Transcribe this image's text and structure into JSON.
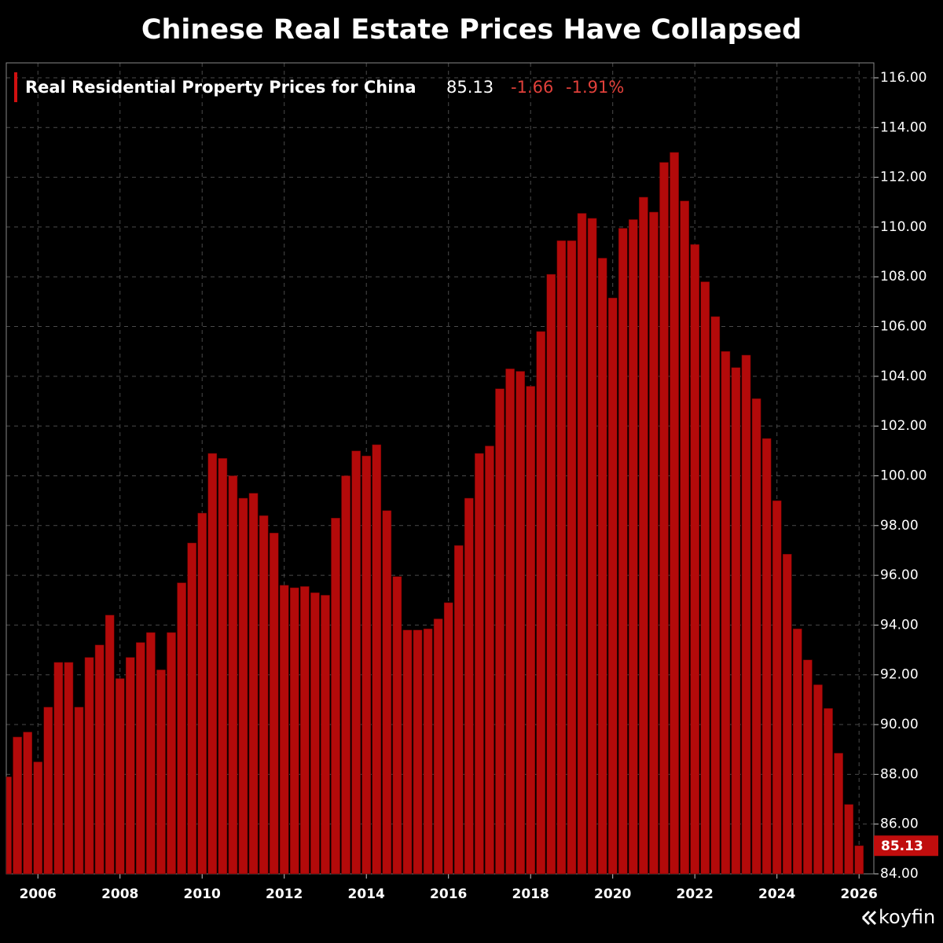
{
  "chart_data": {
    "type": "bar",
    "title": "Chinese Real Estate Prices Have Collapsed",
    "series_name": "Real Residential Property Prices for China",
    "change": -1.66,
    "change_percent": {
      "value": -1.91,
      "label": "-1.91%"
    },
    "brand": "koyfin",
    "color": "#b30a0a",
    "grid": true,
    "x": [
      2005.25,
      2005.5,
      2005.75,
      2006.0,
      2006.25,
      2006.5,
      2006.75,
      2007.0,
      2007.25,
      2007.5,
      2007.75,
      2008.0,
      2008.25,
      2008.5,
      2008.75,
      2009.0,
      2009.25,
      2009.5,
      2009.75,
      2010.0,
      2010.25,
      2010.5,
      2010.75,
      2011.0,
      2011.25,
      2011.5,
      2011.75,
      2012.0,
      2012.25,
      2012.5,
      2012.75,
      2013.0,
      2013.25,
      2013.5,
      2013.75,
      2014.0,
      2014.25,
      2014.5,
      2014.75,
      2015.0,
      2015.25,
      2015.5,
      2015.75,
      2016.0,
      2016.25,
      2016.5,
      2016.75,
      2017.0,
      2017.25,
      2017.5,
      2017.75,
      2018.0,
      2018.25,
      2018.5,
      2018.75,
      2019.0,
      2019.25,
      2019.5,
      2019.75,
      2020.0,
      2020.25,
      2020.5,
      2020.75,
      2021.0,
      2021.25,
      2021.5,
      2021.75,
      2022.0,
      2022.25,
      2022.5,
      2022.75,
      2023.0,
      2023.25,
      2023.5,
      2023.75,
      2024.0,
      2024.25,
      2024.5,
      2024.75,
      2025.0,
      2025.25,
      2025.5,
      2025.75,
      2026.0
    ],
    "values": [
      87.9,
      89.5,
      89.7,
      88.5,
      90.7,
      92.5,
      92.5,
      90.7,
      92.7,
      93.2,
      94.4,
      91.85,
      92.7,
      93.3,
      93.7,
      92.2,
      93.7,
      95.7,
      97.3,
      98.5,
      100.9,
      100.7,
      100.0,
      99.1,
      99.3,
      98.4,
      97.7,
      95.6,
      95.5,
      95.55,
      95.3,
      95.2,
      98.3,
      100.0,
      101.0,
      100.8,
      101.25,
      98.6,
      95.95,
      93.8,
      93.8,
      93.85,
      94.25,
      94.9,
      97.2,
      99.1,
      100.9,
      101.2,
      103.5,
      104.3,
      104.2,
      103.6,
      105.8,
      108.1,
      109.45,
      109.45,
      110.55,
      110.35,
      108.75,
      107.15,
      109.95,
      110.3,
      111.2,
      110.6,
      112.6,
      113.0,
      111.05,
      109.3,
      107.8,
      106.4,
      105.0,
      104.35,
      104.85,
      103.1,
      101.5,
      99.0,
      96.85,
      93.85,
      92.6,
      91.6,
      90.65,
      88.85,
      86.79,
      85.13
    ],
    "xlim": [
      2005.23,
      2026.36
    ],
    "xticks": [
      2006,
      2008,
      2010,
      2012,
      2014,
      2016,
      2018,
      2020,
      2022,
      2024,
      2026
    ],
    "ylim": [
      84,
      116.6
    ],
    "yticks": [
      {
        "value": 84,
        "label": "84.00"
      },
      {
        "value": 86,
        "label": "86.00"
      },
      {
        "value": 88,
        "label": "88.00"
      },
      {
        "value": 90,
        "label": "90.00"
      },
      {
        "value": 92,
        "label": "92.00"
      },
      {
        "value": 94,
        "label": "94.00"
      },
      {
        "value": 96,
        "label": "96.00"
      },
      {
        "value": 98,
        "label": "98.00"
      },
      {
        "value": 100,
        "label": "100.00"
      },
      {
        "value": 102,
        "label": "102.00"
      },
      {
        "value": 104,
        "label": "104.00"
      },
      {
        "value": 106,
        "label": "106.00"
      },
      {
        "value": 108,
        "label": "108.00"
      },
      {
        "value": 110,
        "label": "110.00"
      },
      {
        "value": 112,
        "label": "112.00"
      },
      {
        "value": 114,
        "label": "114.00"
      },
      {
        "value": 116,
        "label": "116.00"
      }
    ]
  }
}
